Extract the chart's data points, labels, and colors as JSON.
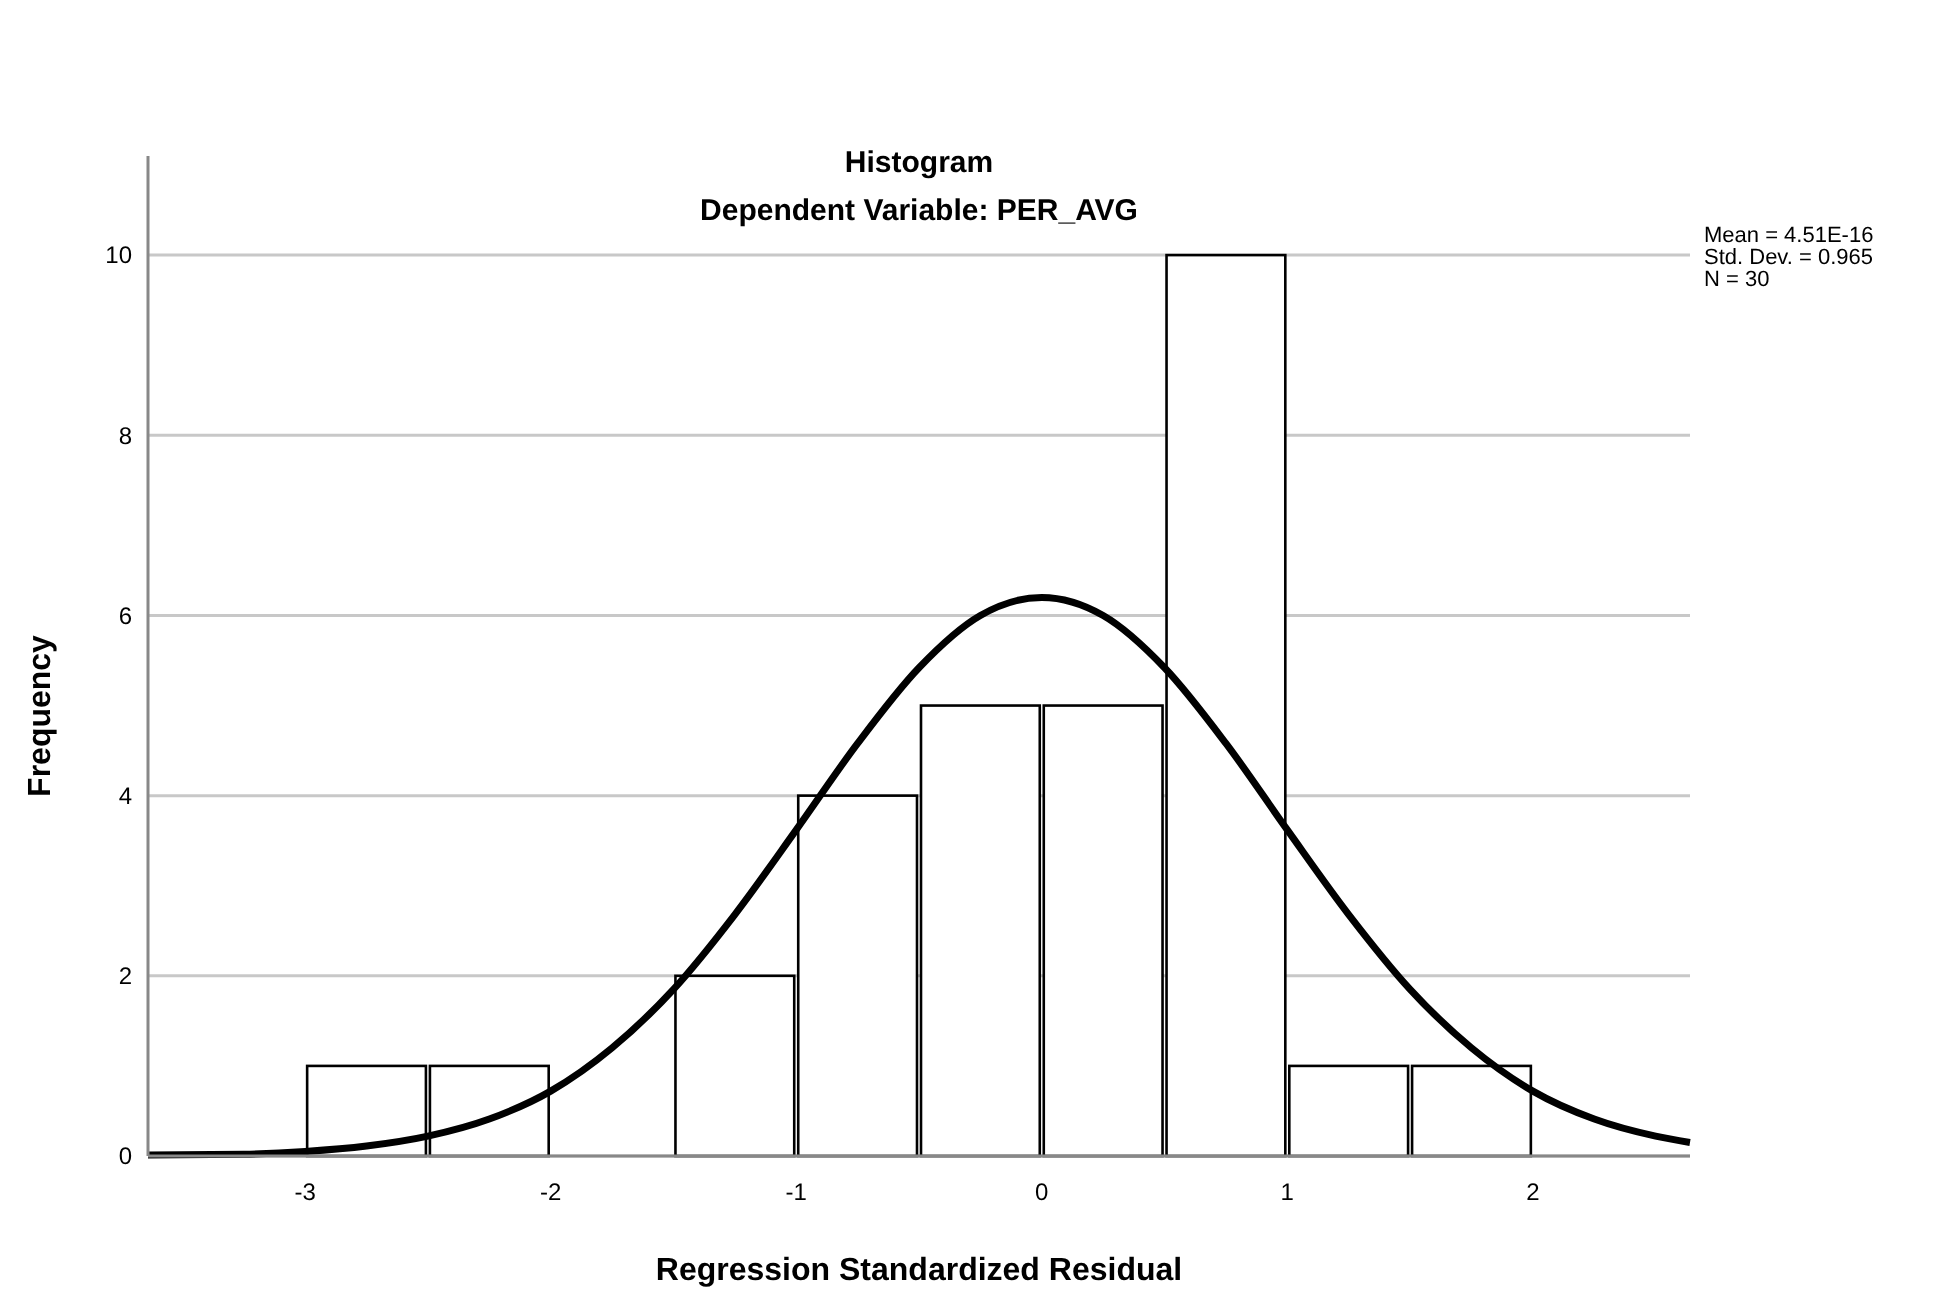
{
  "chart_data": {
    "type": "histogram",
    "title": "Histogram",
    "subtitle": "Dependent Variable: PER_AVG",
    "xlabel": "Regression Standardized Residual",
    "ylabel": "Frequency",
    "annotations": [
      "Mean = 4.51E-16\nStd. Dev. = 0.965\nN = 30"
    ],
    "series": [
      {
        "bins": [
          -3,
          -2.5,
          -2,
          -1.5,
          -1,
          -0.5,
          0,
          0.5,
          1,
          1.5,
          2
        ],
        "values": [
          1,
          1,
          0,
          2,
          4,
          5,
          5,
          10,
          1,
          1
        ],
        "color": "#ffffff"
      },
      {
        "type": "line",
        "color": "#000000",
        "x": [
          -3.64,
          -3.25,
          -3,
          -2.75,
          -2.5,
          -2.25,
          -2,
          -1.75,
          -1.5,
          -1.25,
          -1,
          -0.75,
          -0.5,
          -0.25,
          0,
          0.25,
          0.5,
          0.75,
          1,
          1.25,
          1.5,
          1.75,
          2,
          2.25,
          2.5,
          2.64
        ],
        "values": [
          0.01,
          0.02,
          0.05,
          0.11,
          0.22,
          0.41,
          0.72,
          1.2,
          1.85,
          2.68,
          3.62,
          4.58,
          5.42,
          6.0,
          6.2,
          6.0,
          5.42,
          4.58,
          3.62,
          2.68,
          1.85,
          1.2,
          0.72,
          0.41,
          0.22,
          0.15
        ]
      }
    ],
    "xlim": [
      -3.64,
      2.64
    ],
    "xticks": [
      -3,
      -2,
      -1,
      0,
      1,
      2
    ],
    "ylim": [
      0,
      11.1
    ],
    "yticks": [
      0,
      2,
      4,
      6,
      8,
      10
    ],
    "grid": "y",
    "line_style": "solid",
    "marker": "none"
  }
}
